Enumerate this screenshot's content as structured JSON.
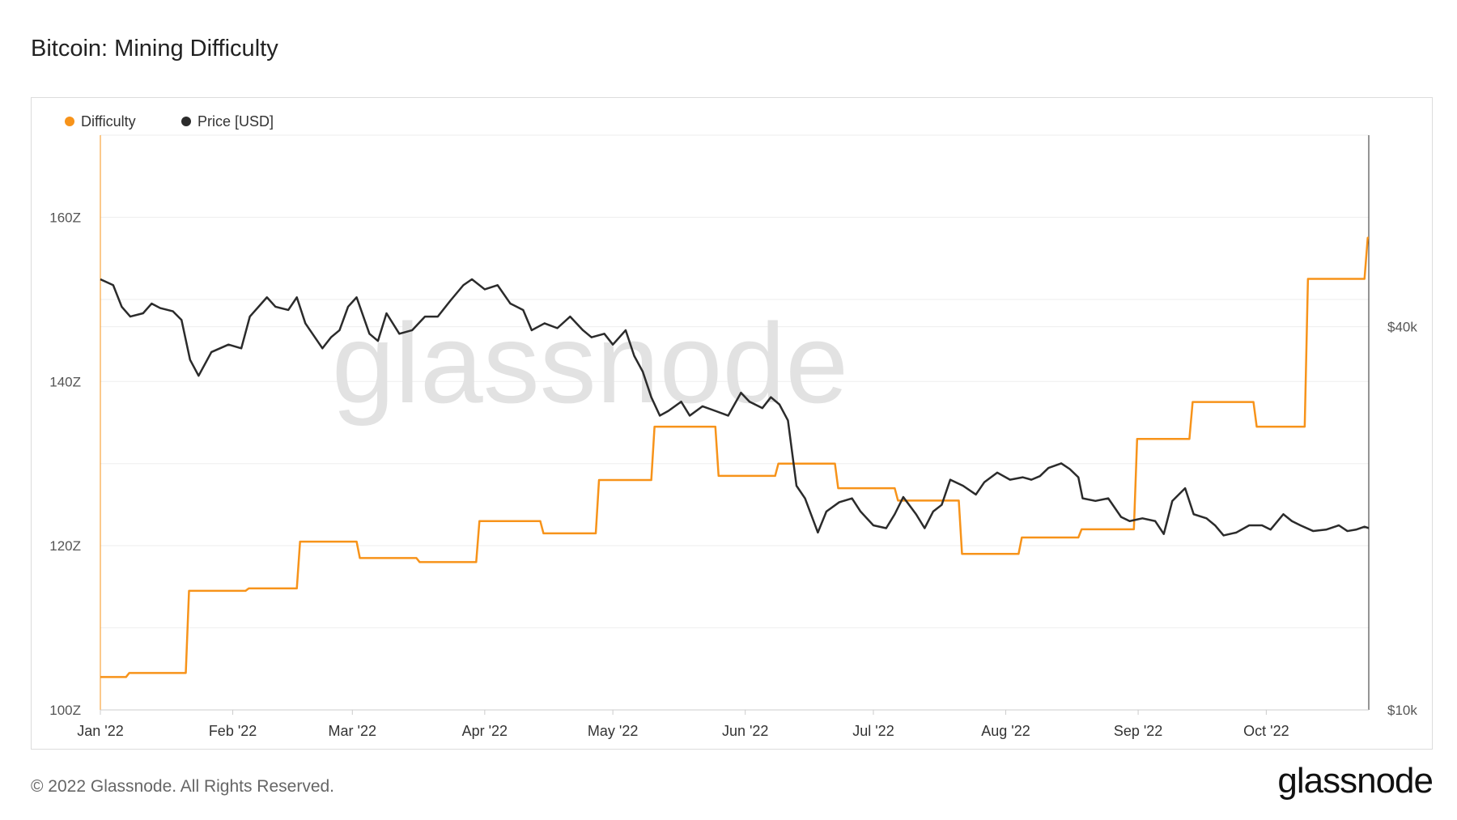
{
  "header": {
    "title": "Bitcoin: Mining Difficulty"
  },
  "footer": {
    "copyright": "© 2022 Glassnode. All Rights Reserved.",
    "brand": "glassnode"
  },
  "watermark": "glassnode",
  "colors": {
    "difficulty": "#f7931a",
    "price": "#2b2b2b",
    "grid": "#eeeeee",
    "axis_text": "#555555"
  },
  "chart_data": {
    "type": "line",
    "title": "Bitcoin: Mining Difficulty",
    "legend_position": "top-left",
    "grid": true,
    "x_range": [
      "2022-01-01",
      "2022-10-25"
    ],
    "x_ticks": [
      {
        "date": "2022-01-01",
        "label": "Jan '22"
      },
      {
        "date": "2022-02-01",
        "label": "Feb '22"
      },
      {
        "date": "2022-03-01",
        "label": "Mar '22"
      },
      {
        "date": "2022-04-01",
        "label": "Apr '22"
      },
      {
        "date": "2022-05-01",
        "label": "May '22"
      },
      {
        "date": "2022-06-01",
        "label": "Jun '22"
      },
      {
        "date": "2022-07-01",
        "label": "Jul '22"
      },
      {
        "date": "2022-08-01",
        "label": "Aug '22"
      },
      {
        "date": "2022-09-01",
        "label": "Sep '22"
      },
      {
        "date": "2022-10-01",
        "label": "Oct '22"
      }
    ],
    "y_left": {
      "ticks": [
        100,
        120,
        140,
        160
      ],
      "tick_labels": [
        "100Z",
        "120Z",
        "140Z",
        "160Z"
      ],
      "range": [
        100,
        170
      ]
    },
    "y_right": {
      "scale": "log",
      "ticks": [
        10000,
        40000
      ],
      "tick_labels": [
        "$10k",
        "$40k"
      ],
      "range": [
        10000,
        80000
      ]
    },
    "series": [
      {
        "name": "Difficulty",
        "axis": "left",
        "step": true,
        "points": [
          [
            "2022-01-01",
            104.0
          ],
          [
            "2022-01-07",
            104.5
          ],
          [
            "2022-01-21",
            114.5
          ],
          [
            "2022-02-04",
            114.8
          ],
          [
            "2022-02-16",
            120.5
          ],
          [
            "2022-03-02",
            118.5
          ],
          [
            "2022-03-16",
            118.0
          ],
          [
            "2022-03-30",
            123.0
          ],
          [
            "2022-04-14",
            121.5
          ],
          [
            "2022-04-27",
            128.0
          ],
          [
            "2022-05-10",
            134.5
          ],
          [
            "2022-05-25",
            128.5
          ],
          [
            "2022-06-08",
            130.0
          ],
          [
            "2022-06-22",
            127.0
          ],
          [
            "2022-07-06",
            125.5
          ],
          [
            "2022-07-21",
            119.0
          ],
          [
            "2022-08-04",
            121.0
          ],
          [
            "2022-08-18",
            122.0
          ],
          [
            "2022-08-31",
            133.0
          ],
          [
            "2022-09-13",
            137.5
          ],
          [
            "2022-09-28",
            134.5
          ],
          [
            "2022-10-10",
            152.5
          ],
          [
            "2022-10-24",
            157.5
          ]
        ]
      },
      {
        "name": "Price [USD]",
        "axis": "right",
        "points": [
          [
            "2022-01-01",
            47500
          ],
          [
            "2022-01-04",
            46500
          ],
          [
            "2022-01-06",
            43000
          ],
          [
            "2022-01-08",
            41500
          ],
          [
            "2022-01-11",
            42000
          ],
          [
            "2022-01-13",
            43500
          ],
          [
            "2022-01-15",
            42800
          ],
          [
            "2022-01-18",
            42300
          ],
          [
            "2022-01-20",
            41000
          ],
          [
            "2022-01-22",
            35500
          ],
          [
            "2022-01-24",
            33500
          ],
          [
            "2022-01-27",
            36500
          ],
          [
            "2022-01-31",
            37500
          ],
          [
            "2022-02-03",
            37000
          ],
          [
            "2022-02-05",
            41500
          ],
          [
            "2022-02-09",
            44500
          ],
          [
            "2022-02-11",
            43000
          ],
          [
            "2022-02-14",
            42500
          ],
          [
            "2022-02-16",
            44500
          ],
          [
            "2022-02-18",
            40500
          ],
          [
            "2022-02-22",
            37000
          ],
          [
            "2022-02-24",
            38500
          ],
          [
            "2022-02-26",
            39500
          ],
          [
            "2022-02-28",
            43000
          ],
          [
            "2022-03-02",
            44500
          ],
          [
            "2022-03-05",
            39000
          ],
          [
            "2022-03-07",
            38000
          ],
          [
            "2022-03-09",
            42000
          ],
          [
            "2022-03-12",
            39000
          ],
          [
            "2022-03-15",
            39500
          ],
          [
            "2022-03-18",
            41500
          ],
          [
            "2022-03-21",
            41500
          ],
          [
            "2022-03-24",
            44000
          ],
          [
            "2022-03-27",
            46500
          ],
          [
            "2022-03-29",
            47500
          ],
          [
            "2022-04-01",
            45800
          ],
          [
            "2022-04-04",
            46500
          ],
          [
            "2022-04-07",
            43500
          ],
          [
            "2022-04-10",
            42500
          ],
          [
            "2022-04-12",
            39500
          ],
          [
            "2022-04-15",
            40500
          ],
          [
            "2022-04-18",
            39800
          ],
          [
            "2022-04-21",
            41500
          ],
          [
            "2022-04-24",
            39500
          ],
          [
            "2022-04-26",
            38500
          ],
          [
            "2022-04-29",
            39000
          ],
          [
            "2022-05-01",
            37500
          ],
          [
            "2022-05-04",
            39500
          ],
          [
            "2022-05-06",
            36000
          ],
          [
            "2022-05-08",
            34000
          ],
          [
            "2022-05-10",
            31000
          ],
          [
            "2022-05-12",
            29000
          ],
          [
            "2022-05-14",
            29500
          ],
          [
            "2022-05-17",
            30500
          ],
          [
            "2022-05-19",
            29000
          ],
          [
            "2022-05-22",
            30000
          ],
          [
            "2022-05-25",
            29500
          ],
          [
            "2022-05-28",
            29000
          ],
          [
            "2022-05-31",
            31500
          ],
          [
            "2022-06-02",
            30500
          ],
          [
            "2022-06-05",
            29800
          ],
          [
            "2022-06-07",
            31000
          ],
          [
            "2022-06-09",
            30200
          ],
          [
            "2022-06-11",
            28500
          ],
          [
            "2022-06-13",
            22500
          ],
          [
            "2022-06-15",
            21500
          ],
          [
            "2022-06-18",
            19000
          ],
          [
            "2022-06-20",
            20500
          ],
          [
            "2022-06-23",
            21200
          ],
          [
            "2022-06-26",
            21500
          ],
          [
            "2022-06-28",
            20500
          ],
          [
            "2022-07-01",
            19500
          ],
          [
            "2022-07-04",
            19300
          ],
          [
            "2022-07-06",
            20300
          ],
          [
            "2022-07-08",
            21600
          ],
          [
            "2022-07-11",
            20300
          ],
          [
            "2022-07-13",
            19300
          ],
          [
            "2022-07-15",
            20500
          ],
          [
            "2022-07-17",
            21000
          ],
          [
            "2022-07-19",
            23000
          ],
          [
            "2022-07-22",
            22500
          ],
          [
            "2022-07-25",
            21800
          ],
          [
            "2022-07-27",
            22800
          ],
          [
            "2022-07-30",
            23600
          ],
          [
            "2022-08-02",
            23000
          ],
          [
            "2022-08-05",
            23200
          ],
          [
            "2022-08-07",
            23000
          ],
          [
            "2022-08-09",
            23300
          ],
          [
            "2022-08-11",
            24000
          ],
          [
            "2022-08-14",
            24400
          ],
          [
            "2022-08-16",
            23900
          ],
          [
            "2022-08-18",
            23200
          ],
          [
            "2022-08-19",
            21500
          ],
          [
            "2022-08-22",
            21300
          ],
          [
            "2022-08-25",
            21500
          ],
          [
            "2022-08-28",
            20100
          ],
          [
            "2022-08-30",
            19800
          ],
          [
            "2022-09-02",
            20000
          ],
          [
            "2022-09-05",
            19800
          ],
          [
            "2022-09-07",
            18900
          ],
          [
            "2022-09-09",
            21300
          ],
          [
            "2022-09-12",
            22300
          ],
          [
            "2022-09-14",
            20300
          ],
          [
            "2022-09-17",
            20000
          ],
          [
            "2022-09-19",
            19500
          ],
          [
            "2022-09-21",
            18800
          ],
          [
            "2022-09-24",
            19000
          ],
          [
            "2022-09-27",
            19500
          ],
          [
            "2022-09-30",
            19500
          ],
          [
            "2022-10-02",
            19200
          ],
          [
            "2022-10-05",
            20300
          ],
          [
            "2022-10-07",
            19800
          ],
          [
            "2022-10-09",
            19500
          ],
          [
            "2022-10-12",
            19100
          ],
          [
            "2022-10-15",
            19200
          ],
          [
            "2022-10-18",
            19500
          ],
          [
            "2022-10-20",
            19100
          ],
          [
            "2022-10-22",
            19200
          ],
          [
            "2022-10-24",
            19400
          ],
          [
            "2022-10-25",
            19300
          ]
        ]
      }
    ]
  }
}
